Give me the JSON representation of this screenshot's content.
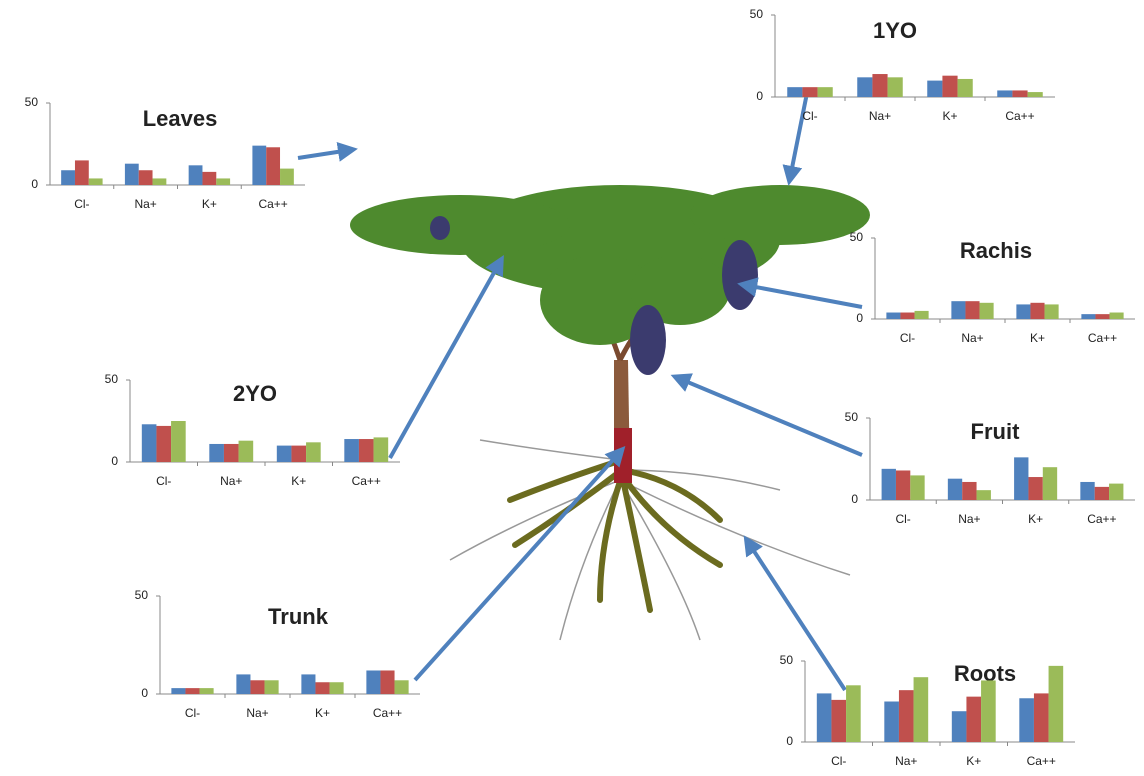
{
  "chart_data": [
    {
      "type": "bar",
      "title": "Leaves",
      "categories": [
        "Cl-",
        "Na+",
        "K+",
        "Ca++"
      ],
      "ylim": [
        0,
        50
      ],
      "yticks": [
        0,
        50
      ],
      "series": [
        {
          "color": "#4f81bd",
          "values": [
            9,
            13,
            12,
            24
          ]
        },
        {
          "color": "#c0504d",
          "values": [
            15,
            9,
            8,
            23
          ]
        },
        {
          "color": "#9bbb59",
          "values": [
            4,
            4,
            4,
            10
          ]
        }
      ]
    },
    {
      "type": "bar",
      "title": "1YO",
      "categories": [
        "Cl-",
        "Na+",
        "K+",
        "Ca++"
      ],
      "ylim": [
        0,
        50
      ],
      "yticks": [
        0,
        50
      ],
      "series": [
        {
          "color": "#4f81bd",
          "values": [
            6,
            12,
            10,
            4
          ]
        },
        {
          "color": "#c0504d",
          "values": [
            6,
            14,
            13,
            4
          ]
        },
        {
          "color": "#9bbb59",
          "values": [
            6,
            12,
            11,
            3
          ]
        }
      ]
    },
    {
      "type": "bar",
      "title": "Rachis",
      "categories": [
        "Cl-",
        "Na+",
        "K+",
        "Ca++"
      ],
      "ylim": [
        0,
        50
      ],
      "yticks": [
        0,
        50
      ],
      "series": [
        {
          "color": "#4f81bd",
          "values": [
            4,
            11,
            9,
            3
          ]
        },
        {
          "color": "#c0504d",
          "values": [
            4,
            11,
            10,
            3
          ]
        },
        {
          "color": "#9bbb59",
          "values": [
            5,
            10,
            9,
            4
          ]
        }
      ]
    },
    {
      "type": "bar",
      "title": "2YO",
      "categories": [
        "Cl-",
        "Na+",
        "K+",
        "Ca++"
      ],
      "ylim": [
        0,
        50
      ],
      "yticks": [
        0,
        50
      ],
      "series": [
        {
          "color": "#4f81bd",
          "values": [
            23,
            11,
            10,
            14
          ]
        },
        {
          "color": "#c0504d",
          "values": [
            22,
            11,
            10,
            14
          ]
        },
        {
          "color": "#9bbb59",
          "values": [
            25,
            13,
            12,
            15
          ]
        }
      ]
    },
    {
      "type": "bar",
      "title": "Fruit",
      "categories": [
        "Cl-",
        "Na+",
        "K+",
        "Ca++"
      ],
      "ylim": [
        0,
        50
      ],
      "yticks": [
        0,
        50
      ],
      "series": [
        {
          "color": "#4f81bd",
          "values": [
            19,
            13,
            26,
            11
          ]
        },
        {
          "color": "#c0504d",
          "values": [
            18,
            11,
            14,
            8
          ]
        },
        {
          "color": "#9bbb59",
          "values": [
            15,
            6,
            20,
            10
          ]
        }
      ]
    },
    {
      "type": "bar",
      "title": "Trunk",
      "categories": [
        "Cl-",
        "Na+",
        "K+",
        "Ca++"
      ],
      "ylim": [
        0,
        50
      ],
      "yticks": [
        0,
        50
      ],
      "series": [
        {
          "color": "#4f81bd",
          "values": [
            3,
            10,
            10,
            12
          ]
        },
        {
          "color": "#c0504d",
          "values": [
            3,
            7,
            6,
            12
          ]
        },
        {
          "color": "#9bbb59",
          "values": [
            3,
            7,
            6,
            7
          ]
        }
      ]
    },
    {
      "type": "bar",
      "title": "Roots",
      "categories": [
        "Cl-",
        "Na+",
        "K+",
        "Ca++"
      ],
      "ylim": [
        0,
        50
      ],
      "yticks": [
        0,
        50
      ],
      "series": [
        {
          "color": "#4f81bd",
          "values": [
            30,
            25,
            19,
            27
          ]
        },
        {
          "color": "#c0504d",
          "values": [
            26,
            32,
            28,
            30
          ]
        },
        {
          "color": "#9bbb59",
          "values": [
            35,
            40,
            38,
            47
          ]
        }
      ]
    }
  ]
}
